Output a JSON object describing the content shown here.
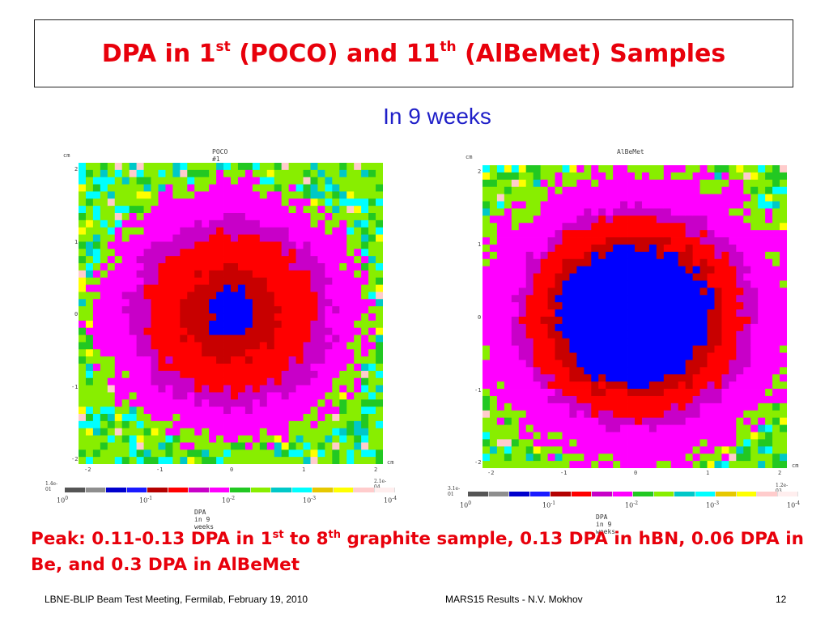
{
  "slide": {
    "title_parts": [
      "DPA in 1",
      "st",
      " (POCO) and 11",
      "th",
      " (AlBeMet) Samples"
    ],
    "subtitle": "In 9 weeks",
    "peak_parts": [
      "Peak: 0.11-0.13 DPA in 1",
      "st",
      " to 8",
      "th",
      " graphite sample, 0.13 DPA in hBN, 0.06 DPA in Be, and 0.3 DPA in AlBeMet"
    ],
    "footer_left": "LBNE-BLIP Beam Test Meeting, Fermilab, February 19, 2010",
    "footer_center": "MARS15 Results -  N.V. Mokhov",
    "page_number": "12"
  },
  "plots": [
    {
      "title": "POCO #1",
      "unit": "cm",
      "ticks": [
        "2",
        "1",
        "0",
        "-1",
        "-2"
      ],
      "max_label": "1.4e-01",
      "min_label": "2.1e-04",
      "scale_label": "DPA in 9 weeks",
      "decades": [
        "10^0",
        "10^-1",
        "10^-2",
        "10^-3",
        "10^-4"
      ]
    },
    {
      "title": "AlBeMet",
      "unit": "cm",
      "ticks": [
        "2",
        "1",
        "0",
        "-1",
        "-2"
      ],
      "max_label": "3.1e-01",
      "min_label": "1.2e-03",
      "scale_label": "DPA in 9 weeks",
      "decades": [
        "10^0",
        "10^-1",
        "10^-2",
        "10^-3",
        "10^-4"
      ]
    }
  ],
  "colors": {
    "title_red": "#e8000b",
    "subtitle_blue": "#1f1fc8",
    "scale": [
      "#555555",
      "#8e8e8e",
      "#0000cd",
      "#1a1aff",
      "#b40000",
      "#ff0000",
      "#c800c8",
      "#ff00ff",
      "#22c822",
      "#88ee00",
      "#00c8c8",
      "#00ffff",
      "#e6c800",
      "#ffff00",
      "#ffcccc",
      "#ffeeee"
    ]
  }
}
